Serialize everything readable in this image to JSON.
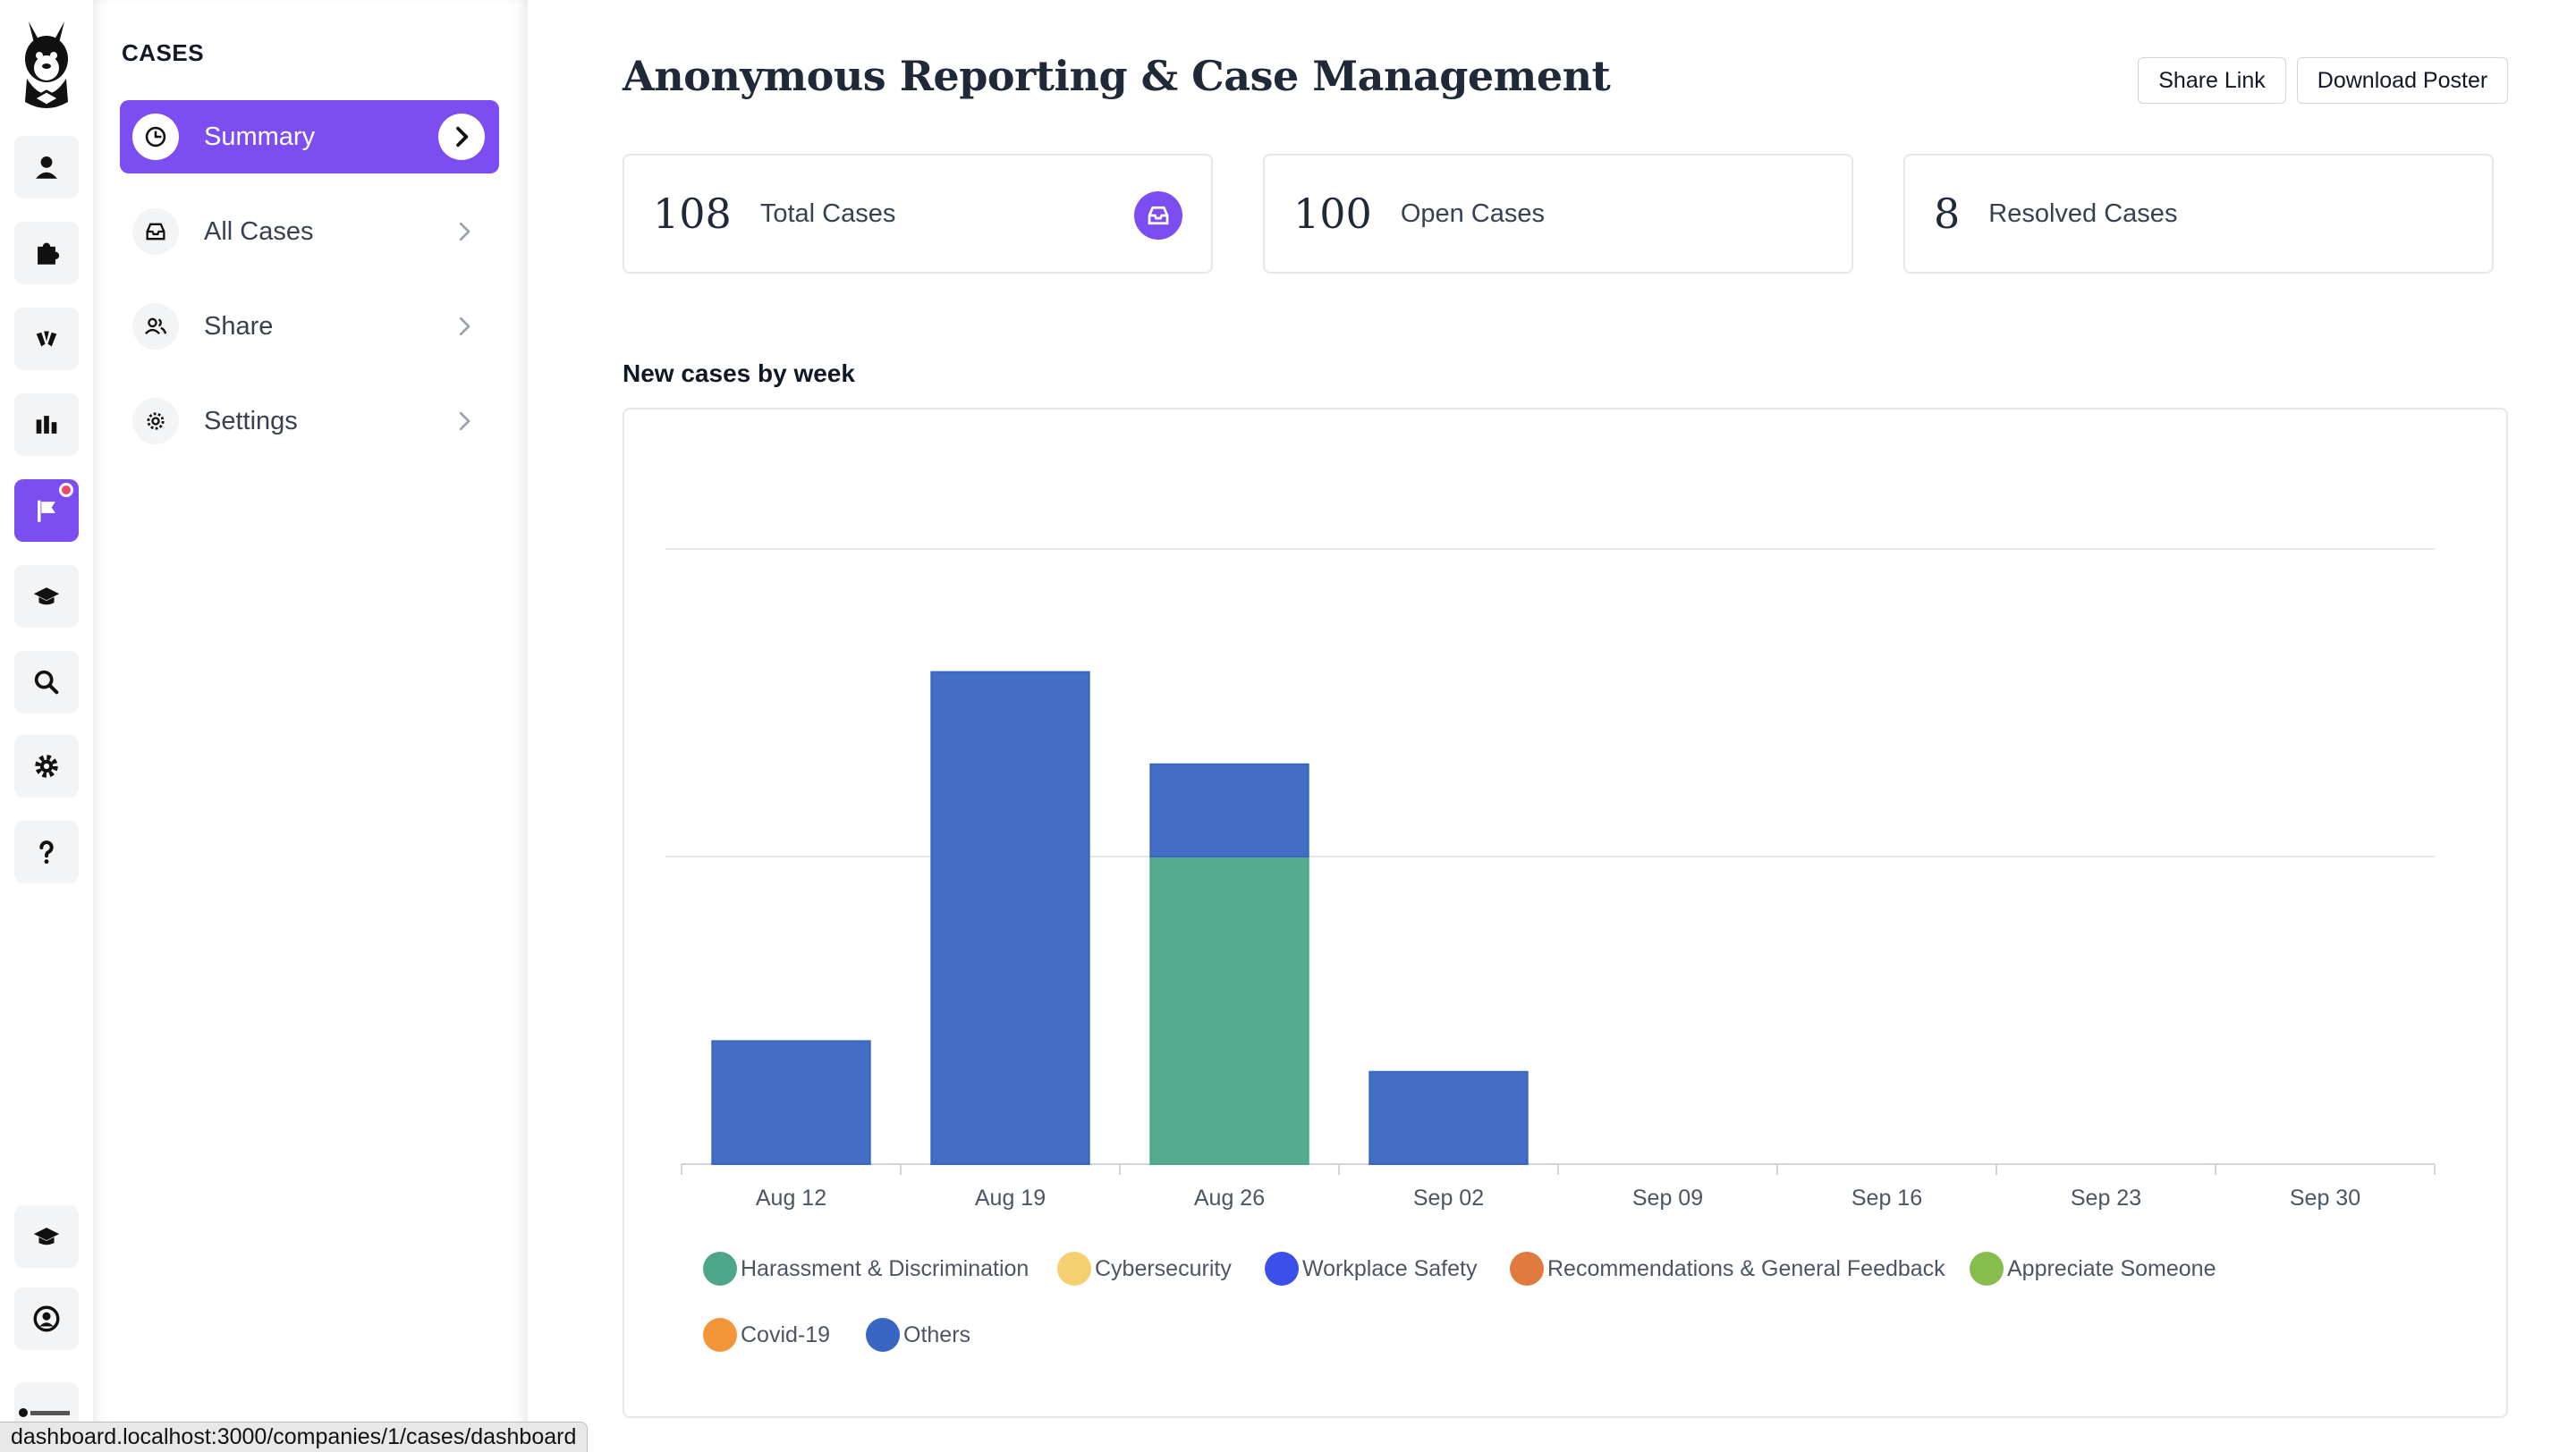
{
  "rail": {
    "logo_icon": "llama-logo-icon",
    "items": [
      {
        "icon": "user-icon"
      },
      {
        "icon": "puzzle-icon"
      },
      {
        "icon": "hands-icon"
      },
      {
        "icon": "bar-chart-icon"
      },
      {
        "icon": "flag-icon",
        "active": true,
        "notification": true
      },
      {
        "icon": "graduation-cap-icon"
      },
      {
        "icon": "search-icon"
      },
      {
        "icon": "gear-icon"
      },
      {
        "icon": "question-icon"
      },
      {
        "icon": "graduation-cap-icon"
      },
      {
        "icon": "user-circle-icon"
      }
    ],
    "accent": "#7c4df0"
  },
  "sidebar": {
    "title": "CASES",
    "items": [
      {
        "label": "Summary",
        "icon": "pie-clock-icon",
        "active": true
      },
      {
        "label": "All Cases",
        "icon": "inbox-icon"
      },
      {
        "label": "Share",
        "icon": "users-icon"
      },
      {
        "label": "Settings",
        "icon": "gear-icon"
      }
    ]
  },
  "header": {
    "title": "Anonymous Reporting & Case Management",
    "share_label": "Share Link",
    "download_label": "Download Poster"
  },
  "stats": [
    {
      "value": "108",
      "label": "Total Cases",
      "icon": "inbox-icon"
    },
    {
      "value": "100",
      "label": "Open Cases"
    },
    {
      "value": "8",
      "label": "Resolved Cases"
    }
  ],
  "chart_section": {
    "title": "New cases by week"
  },
  "chart_data": {
    "type": "bar",
    "stacked": true,
    "categories": [
      "Aug 12",
      "Aug 19",
      "Aug 26",
      "Sep 02",
      "Sep 09",
      "Sep 16",
      "Sep 23",
      "Sep 30"
    ],
    "series": [
      {
        "name": "Harassment & Discrimination",
        "color": "#4ca68a",
        "values": [
          0,
          0,
          1,
          0,
          0,
          0,
          0,
          0
        ]
      },
      {
        "name": "Cybersecurity",
        "color": "#f6cf70",
        "values": [
          0,
          0,
          0,
          0,
          0,
          0,
          0,
          0
        ]
      },
      {
        "name": "Workplace Safety",
        "color": "#3a50e8",
        "values": [
          0,
          0,
          0,
          0,
          0,
          0,
          0,
          0
        ]
      },
      {
        "name": "Recommendations & General Feedback",
        "color": "#e07a3e",
        "values": [
          0,
          0,
          0,
          0,
          0,
          0,
          0,
          0
        ]
      },
      {
        "name": "Appreciate Someone",
        "color": "#86bd4d",
        "values": [
          0,
          0,
          0,
          0,
          0,
          0,
          0,
          0
        ]
      },
      {
        "name": "Covid-19",
        "color": "#f4953a",
        "values": [
          0,
          0,
          0,
          0,
          0,
          0,
          0,
          0
        ]
      },
      {
        "name": "Others",
        "color": "#3866c2",
        "values": [
          0.4,
          1.6,
          0.3,
          0.3,
          0,
          0,
          0,
          0
        ]
      }
    ],
    "ylim": [
      0,
      2
    ],
    "gridlines": [
      1,
      2
    ],
    "grid": true,
    "legend_position": "bottom-left"
  },
  "status_bar": {
    "url": "dashboard.localhost:3000/companies/1/cases/dashboard"
  }
}
